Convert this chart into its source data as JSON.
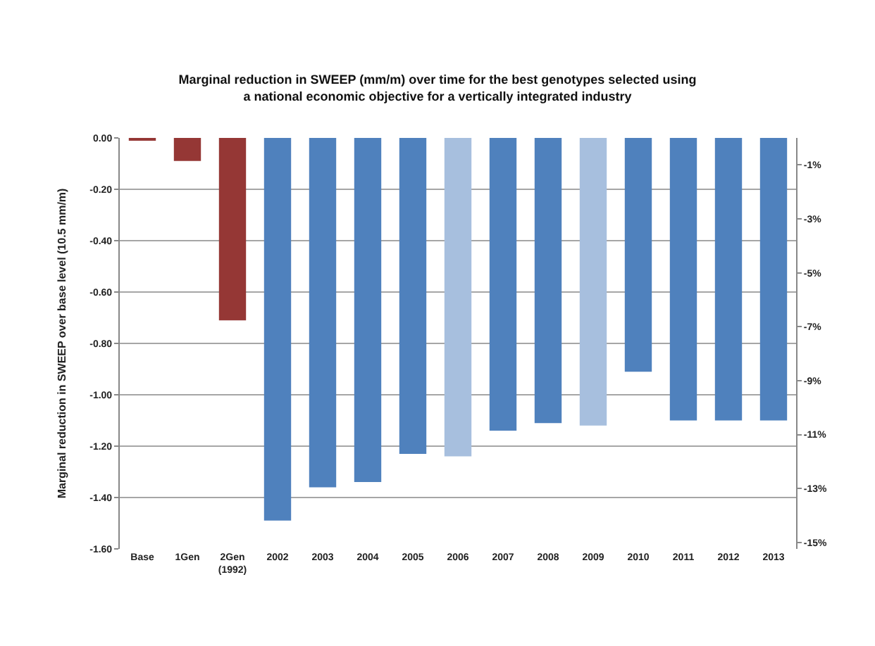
{
  "chart_data": {
    "type": "bar",
    "title": "Marginal reduction in SWEEP (mm/m) over time for the best genotypes selected using\na national economic objective for a vertically integrated industry",
    "ylabel": "Marginal reduction in SWEEP over base level (10.5 mm/m)",
    "categories": [
      "Base",
      "1Gen",
      "2Gen\n(1992)",
      "2002",
      "2003",
      "2004",
      "2005",
      "2006",
      "2007",
      "2008",
      "2009",
      "2010",
      "2011",
      "2012",
      "2013"
    ],
    "values": [
      -0.01,
      -0.09,
      -0.71,
      -1.49,
      -1.36,
      -1.34,
      -1.23,
      -1.24,
      -1.14,
      -1.11,
      -1.12,
      -0.91,
      -1.1,
      -1.1,
      -1.1
    ],
    "colors": [
      "#953735",
      "#953735",
      "#953735",
      "#4f81bd",
      "#4f81bd",
      "#4f81bd",
      "#4f81bd",
      "#a7bfde",
      "#4f81bd",
      "#4f81bd",
      "#a7bfde",
      "#4f81bd",
      "#4f81bd",
      "#4f81bd",
      "#4f81bd"
    ],
    "ylim": [
      -1.6,
      0
    ],
    "yticks": [
      {
        "value": 0,
        "label": "0.00"
      },
      {
        "value": -0.2,
        "label": "-0.20"
      },
      {
        "value": -0.4,
        "label": "-0.40"
      },
      {
        "value": -0.6,
        "label": "-0.60"
      },
      {
        "value": -0.8,
        "label": "-0.80"
      },
      {
        "value": -1.0,
        "label": "-1.00"
      },
      {
        "value": -1.2,
        "label": "-1.20"
      },
      {
        "value": -1.4,
        "label": "-1.40"
      },
      {
        "value": -1.6,
        "label": "-1.60"
      }
    ],
    "y2lim": [
      -15.24,
      0
    ],
    "y2ticks": [
      {
        "value": -1,
        "label": "-1%"
      },
      {
        "value": -3,
        "label": "-3%"
      },
      {
        "value": -5,
        "label": "-5%"
      },
      {
        "value": -7,
        "label": "-7%"
      },
      {
        "value": -9,
        "label": "-9%"
      },
      {
        "value": -11,
        "label": "-11%"
      },
      {
        "value": -13,
        "label": "-13%"
      },
      {
        "value": -15,
        "label": "-15%"
      }
    ],
    "grid": "y"
  }
}
